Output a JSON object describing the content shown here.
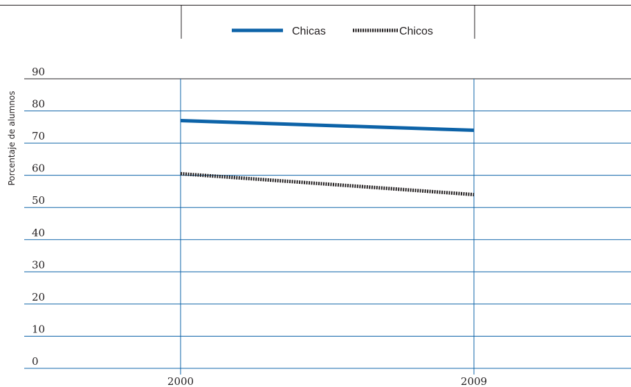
{
  "chart_data": {
    "type": "line",
    "x": [
      "2000",
      "2009"
    ],
    "series": [
      {
        "name": "Chicas",
        "values": [
          77,
          74
        ],
        "color": "#0d63a8",
        "style": "solid"
      },
      {
        "name": "Chicos",
        "values": [
          60.5,
          54
        ],
        "color": "#231f20",
        "style": "dotted"
      }
    ],
    "ylabel": "Porcentaje de alumnos",
    "xlabel": "",
    "ylim": [
      0,
      90
    ],
    "yticks": [
      "0",
      "10",
      "20",
      "30",
      "40",
      "50",
      "60",
      "70",
      "80",
      "90"
    ],
    "grid": true,
    "grid_color": "#0d63a8",
    "legend_position": "top-center"
  }
}
